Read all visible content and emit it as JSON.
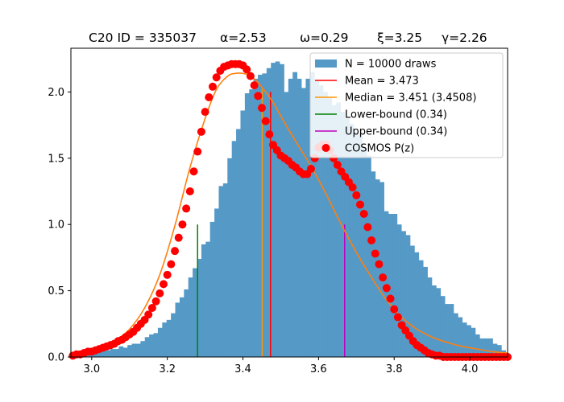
{
  "chart_data": {
    "type": "bar",
    "title": {
      "id": "C20 ID = 335037",
      "alpha": "α=2.53",
      "omega": "ω=0.29",
      "xi": "ξ=3.25",
      "gamma": "γ=2.26"
    },
    "xlabel": "",
    "ylabel": "",
    "xlim": [
      2.945,
      4.1
    ],
    "ylim": [
      0,
      2.33
    ],
    "xticks": [
      "3.0",
      "3.2",
      "3.4",
      "3.6",
      "3.8",
      "4.0"
    ],
    "xtick_values": [
      3.0,
      3.2,
      3.4,
      3.6,
      3.8,
      4.0
    ],
    "yticks": [
      "0.0",
      "0.5",
      "1.0",
      "1.5",
      "2.0"
    ],
    "ytick_values": [
      0.0,
      0.5,
      1.0,
      1.5,
      2.0
    ],
    "grid": false,
    "legend_position": "top-right",
    "colors": {
      "histogram": "#5599c7",
      "mean": "#ff0000",
      "median": "#ff9500",
      "lower": "#008000",
      "upper": "#bf00bf",
      "cosmos": "#ff0000",
      "fit": "#ff7f0e"
    },
    "legend": [
      {
        "key": "hist",
        "label": "N = 10000 draws",
        "marker": "patch",
        "color": "#5599c7"
      },
      {
        "key": "mean",
        "label": "Mean = 3.473",
        "marker": "line",
        "color": "#ff0000"
      },
      {
        "key": "median",
        "label": "Median = 3.451    (3.4508)",
        "marker": "line",
        "color": "#ff9500"
      },
      {
        "key": "lower",
        "label": "Lower-bound  (0.34)",
        "marker": "line",
        "color": "#008000"
      },
      {
        "key": "upper",
        "label": "Upper-bound  (0.34)",
        "marker": "line",
        "color": "#bf00bf"
      },
      {
        "key": "cosmos",
        "label": "COSMOS P(z)",
        "marker": "dot",
        "color": "#ff0000"
      }
    ],
    "histogram": {
      "bin_start": 2.945,
      "bin_width": 0.0115,
      "values": [
        0.01,
        0.01,
        0.01,
        0.02,
        0.02,
        0.03,
        0.04,
        0.05,
        0.05,
        0.06,
        0.06,
        0.08,
        0.07,
        0.09,
        0.1,
        0.1,
        0.12,
        0.15,
        0.17,
        0.18,
        0.22,
        0.26,
        0.28,
        0.33,
        0.41,
        0.45,
        0.51,
        0.6,
        0.67,
        0.74,
        0.85,
        0.87,
        1.02,
        1.12,
        1.29,
        1.31,
        1.5,
        1.63,
        1.72,
        1.86,
        1.99,
        2.02,
        2.1,
        2.13,
        2.14,
        2.18,
        2.22,
        2.23,
        2.21,
        2.0,
        2.1,
        2.15,
        2.1,
        2.03,
        2.1,
        2.15,
        2.08,
        2.05,
        2.0,
        1.96,
        1.9,
        1.92,
        1.85,
        1.8,
        1.76,
        1.7,
        1.68,
        1.58,
        1.52,
        1.4,
        1.34,
        1.32,
        1.1,
        1.08,
        1.08,
        1.0,
        0.95,
        0.92,
        0.84,
        0.79,
        0.73,
        0.68,
        0.6,
        0.54,
        0.52,
        0.46,
        0.4,
        0.4,
        0.33,
        0.3,
        0.26,
        0.24,
        0.22,
        0.17,
        0.14,
        0.14,
        0.14,
        0.1,
        0.09,
        0.05
      ]
    },
    "fit_curve": {
      "name": "",
      "x": [
        2.945,
        2.98,
        3.02,
        3.06,
        3.1,
        3.14,
        3.18,
        3.22,
        3.26,
        3.3,
        3.33,
        3.36,
        3.38,
        3.4,
        3.42,
        3.44,
        3.46,
        3.48,
        3.5,
        3.52,
        3.55,
        3.58,
        3.62,
        3.66,
        3.7,
        3.74,
        3.78,
        3.82,
        3.86,
        3.9,
        3.94,
        3.98,
        4.02,
        4.06,
        4.1
      ],
      "y": [
        0.02,
        0.04,
        0.07,
        0.12,
        0.21,
        0.37,
        0.62,
        0.99,
        1.43,
        1.8,
        2.02,
        2.12,
        2.14,
        2.14,
        2.12,
        2.07,
        2.0,
        1.92,
        1.82,
        1.72,
        1.58,
        1.44,
        1.23,
        1.0,
        0.79,
        0.6,
        0.43,
        0.3,
        0.21,
        0.15,
        0.11,
        0.08,
        0.06,
        0.04,
        0.03
      ]
    },
    "vlines": [
      {
        "key": "lower",
        "x": 3.28,
        "ymax": 1.0
      },
      {
        "key": "median",
        "x": 3.451,
        "ymax": 2.02
      },
      {
        "key": "mean",
        "x": 3.473,
        "ymax": 2.0
      },
      {
        "key": "upper",
        "x": 3.669,
        "ymax": 1.0
      }
    ],
    "cosmos_pz": {
      "name": "",
      "x": [
        2.95,
        2.96,
        2.97,
        2.98,
        2.99,
        3.0,
        3.01,
        3.02,
        3.03,
        3.04,
        3.05,
        3.06,
        3.07,
        3.08,
        3.09,
        3.1,
        3.11,
        3.12,
        3.13,
        3.14,
        3.15,
        3.16,
        3.17,
        3.18,
        3.19,
        3.2,
        3.21,
        3.22,
        3.23,
        3.24,
        3.25,
        3.26,
        3.27,
        3.28,
        3.29,
        3.3,
        3.31,
        3.32,
        3.33,
        3.34,
        3.35,
        3.36,
        3.37,
        3.38,
        3.39,
        3.4,
        3.41,
        3.42,
        3.43,
        3.44,
        3.45,
        3.46,
        3.47,
        3.48,
        3.49,
        3.5,
        3.51,
        3.52,
        3.53,
        3.54,
        3.55,
        3.56,
        3.57,
        3.58,
        3.59,
        3.6,
        3.61,
        3.62,
        3.63,
        3.64,
        3.65,
        3.66,
        3.67,
        3.68,
        3.69,
        3.7,
        3.71,
        3.72,
        3.73,
        3.74,
        3.75,
        3.76,
        3.77,
        3.78,
        3.79,
        3.8,
        3.81,
        3.82,
        3.83,
        3.84,
        3.85,
        3.86,
        3.87,
        3.88,
        3.89,
        3.9,
        3.91,
        3.92,
        3.93,
        3.94,
        3.95,
        3.96,
        3.97,
        3.98,
        3.99,
        4.0,
        4.01,
        4.02,
        4.03,
        4.04,
        4.05,
        4.06,
        4.07,
        4.08,
        4.09,
        4.1
      ],
      "y": [
        0.01,
        0.02,
        0.02,
        0.03,
        0.04,
        0.04,
        0.05,
        0.06,
        0.07,
        0.08,
        0.09,
        0.1,
        0.12,
        0.13,
        0.15,
        0.17,
        0.19,
        0.22,
        0.25,
        0.28,
        0.32,
        0.37,
        0.42,
        0.48,
        0.55,
        0.62,
        0.7,
        0.8,
        0.9,
        1.0,
        1.12,
        1.25,
        1.4,
        1.55,
        1.7,
        1.85,
        1.96,
        2.04,
        2.11,
        2.16,
        2.19,
        2.2,
        2.21,
        2.21,
        2.21,
        2.2,
        2.17,
        2.12,
        2.05,
        1.97,
        1.88,
        1.78,
        1.68,
        1.6,
        1.56,
        1.52,
        1.5,
        1.48,
        1.45,
        1.43,
        1.4,
        1.38,
        1.38,
        1.42,
        1.5,
        1.58,
        1.6,
        1.6,
        1.56,
        1.5,
        1.45,
        1.4,
        1.36,
        1.32,
        1.28,
        1.22,
        1.15,
        1.08,
        0.98,
        0.88,
        0.78,
        0.7,
        0.6,
        0.52,
        0.44,
        0.36,
        0.3,
        0.24,
        0.2,
        0.16,
        0.12,
        0.09,
        0.07,
        0.05,
        0.03,
        0.02,
        0.01,
        0.01,
        0.0,
        0.0,
        0.0,
        0.0,
        0.0,
        0.0,
        0.0,
        0.0,
        0.0,
        0.0,
        0.0,
        0.0,
        0.0,
        0.0,
        0.0,
        0.0,
        0.0,
        0.0
      ]
    }
  }
}
